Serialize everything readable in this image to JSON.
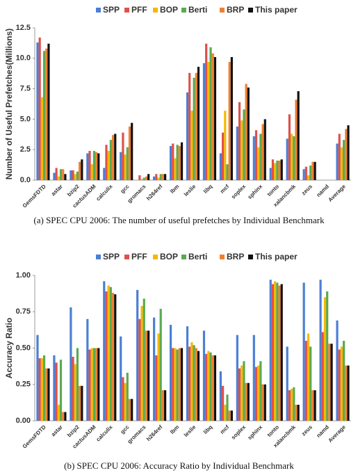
{
  "chart_data": [
    {
      "type": "bar",
      "ylabel": "Number of Useful Prefetches(Millions)",
      "caption": "(a) SPEC CPU 2006: The number of useful prefetches by Individual Benchmark",
      "categories": [
        "GemsFDTD",
        "astar",
        "bzip2",
        "cactusADM",
        "calculix",
        "gcc",
        "gromacs",
        "h264ref",
        "lbm",
        "leslie",
        "libq",
        "mcf",
        "soplex",
        "sphinx",
        "tonto",
        "xalancbmk",
        "zeus",
        "namd",
        "Average"
      ],
      "series": [
        {
          "name": "SPP",
          "color": "#4a7fd4",
          "values": [
            11.3,
            0.6,
            0.8,
            2.2,
            1.0,
            2.3,
            0.0,
            0.3,
            2.8,
            7.2,
            9.6,
            2.2,
            4.4,
            3.6,
            1.0,
            3.4,
            0.9,
            0.0,
            3.0
          ]
        },
        {
          "name": "PFF",
          "color": "#e0504a",
          "values": [
            11.7,
            1.0,
            0.8,
            2.4,
            2.9,
            3.9,
            0.4,
            0.5,
            3.0,
            8.8,
            11.2,
            3.9,
            6.4,
            4.1,
            1.7,
            5.4,
            1.1,
            0.0,
            3.8
          ]
        },
        {
          "name": "BOP",
          "color": "#f5b800",
          "values": [
            6.8,
            0.3,
            0.5,
            1.3,
            2.4,
            2.1,
            0.1,
            0.2,
            1.8,
            5.7,
            9.7,
            5.7,
            4.9,
            2.7,
            1.4,
            3.8,
            0.4,
            0.0,
            2.7
          ]
        },
        {
          "name": "Berti",
          "color": "#5aaa50",
          "values": [
            10.6,
            0.9,
            0.7,
            2.4,
            3.3,
            2.7,
            0.2,
            0.5,
            2.9,
            8.4,
            10.9,
            1.3,
            5.8,
            3.8,
            1.6,
            3.6,
            1.2,
            0.0,
            3.3
          ]
        },
        {
          "name": "BRP",
          "color": "#f08030",
          "values": [
            10.8,
            0.9,
            1.5,
            2.3,
            3.7,
            4.4,
            0.3,
            0.5,
            2.8,
            8.8,
            10.4,
            9.7,
            7.9,
            4.6,
            1.6,
            6.6,
            1.5,
            0.0,
            4.2
          ]
        },
        {
          "name": "This paper",
          "color": "#111111",
          "values": [
            11.2,
            0.5,
            1.7,
            2.2,
            3.8,
            4.7,
            0.5,
            0.5,
            3.1,
            9.3,
            10.1,
            10.1,
            7.6,
            5.0,
            1.7,
            7.3,
            1.5,
            0.0,
            4.5
          ]
        }
      ],
      "ylim": [
        0,
        12.5
      ],
      "yticks": [
        {
          "value": 0,
          "label": "0.0"
        },
        {
          "value": 2.5,
          "label": "2.5"
        },
        {
          "value": 5,
          "label": "5.0"
        },
        {
          "value": 7.5,
          "label": "7.5"
        },
        {
          "value": 10,
          "label": "10.0"
        },
        {
          "value": 12.5,
          "label": "12.5"
        }
      ],
      "grid": false
    },
    {
      "type": "bar",
      "ylabel": "Accuracy Ratio",
      "caption": "(b) SPEC CPU 2006: Accuracy Ratio by Individual Benchmark",
      "categories": [
        "GemsFDTD",
        "astar",
        "bzip2",
        "cactusADM",
        "calculix",
        "gcc",
        "gromacs",
        "h264ref",
        "lbm",
        "leslie",
        "libq",
        "mcf",
        "soplex",
        "sphinx",
        "tonto",
        "xalancbmk",
        "zeus",
        "namd",
        "Average"
      ],
      "series": [
        {
          "name": "SPP",
          "color": "#4a7fd4",
          "values": [
            0.59,
            0.45,
            0.78,
            0.7,
            0.96,
            0.58,
            0.9,
            0.71,
            0.66,
            0.65,
            0.62,
            0.34,
            0.59,
            0.59,
            0.97,
            0.51,
            0.95,
            0.97,
            0.69
          ]
        },
        {
          "name": "PFF",
          "color": "#e0504a",
          "values": [
            0.43,
            0.4,
            0.44,
            0.49,
            0.89,
            0.3,
            0.7,
            0.45,
            0.5,
            0.51,
            0.46,
            0.24,
            0.36,
            0.37,
            0.94,
            0.21,
            0.55,
            0.61,
            0.49
          ]
        },
        {
          "name": "BOP",
          "color": "#f5b800",
          "values": [
            0.43,
            0.11,
            0.39,
            0.5,
            0.93,
            0.26,
            0.79,
            0.6,
            0.5,
            0.54,
            0.48,
            0.11,
            0.38,
            0.38,
            0.96,
            0.22,
            0.6,
            0.85,
            0.51
          ]
        },
        {
          "name": "Berti",
          "color": "#5aaa50",
          "values": [
            0.45,
            0.42,
            0.5,
            0.5,
            0.92,
            0.33,
            0.84,
            0.77,
            0.49,
            0.52,
            0.47,
            0.18,
            0.41,
            0.41,
            0.95,
            0.23,
            0.51,
            0.89,
            0.55
          ]
        },
        {
          "name": "BRP",
          "color": "#f08030",
          "values": [
            0.36,
            0.06,
            0.24,
            0.5,
            0.88,
            0.15,
            0.62,
            0.21,
            0.5,
            0.5,
            0.45,
            0.07,
            0.26,
            0.25,
            0.93,
            0.11,
            0.21,
            0.53,
            0.38
          ]
        },
        {
          "name": "This paper",
          "color": "#111111",
          "values": [
            0.36,
            0.06,
            0.24,
            0.5,
            0.87,
            0.15,
            0.62,
            0.21,
            0.5,
            0.48,
            0.45,
            0.07,
            0.26,
            0.25,
            0.94,
            0.11,
            0.21,
            0.53,
            0.38
          ]
        }
      ],
      "ylim": [
        0,
        1
      ],
      "yticks": [
        {
          "value": 0,
          "label": "0.00"
        },
        {
          "value": 0.25,
          "label": "0.25"
        },
        {
          "value": 0.5,
          "label": "0.50"
        },
        {
          "value": 0.75,
          "label": "0.75"
        },
        {
          "value": 1,
          "label": "1.00"
        }
      ],
      "grid": false
    }
  ]
}
